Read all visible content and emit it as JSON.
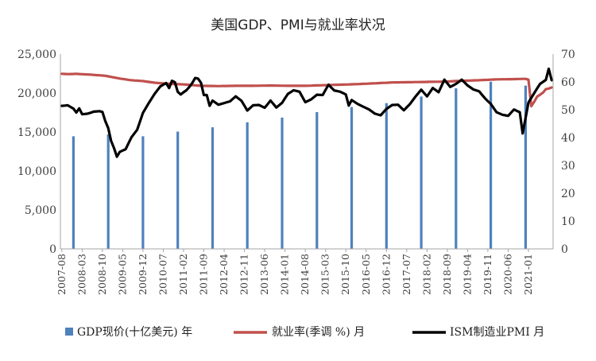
{
  "chart_data": {
    "type": "bar+line",
    "title": "美国GDP、PMI与就业率状况",
    "left_axis": {
      "min": 0,
      "max": 25000,
      "step": 5000,
      "tick_labels": [
        "0",
        "5,000",
        "10,000",
        "15,000",
        "20,000",
        "25,000"
      ]
    },
    "right_axis": {
      "min": 0,
      "max": 70,
      "step": 10,
      "tick_labels": [
        "0",
        "10",
        "20",
        "30",
        "40",
        "50",
        "60",
        "70"
      ]
    },
    "x_tick_labels": [
      "2007-08",
      "2008-03",
      "2008-10",
      "2009-05",
      "2009-12",
      "2010-07",
      "2011-02",
      "2011-09",
      "2012-04",
      "2012-11",
      "2013-06",
      "2014-01",
      "2014-08",
      "2015-03",
      "2015-10",
      "2016-05",
      "2016-12",
      "2017-07",
      "2018-02",
      "2018-09",
      "2019-04",
      "2019-11",
      "2020-06",
      "2021-01"
    ],
    "start_month": "2007-08",
    "num_months": 170,
    "gdp": {
      "name": "GDP现价(十亿美元) 年",
      "color": "#4f81bd",
      "points": [
        {
          "month": "2007-12",
          "value": 14450
        },
        {
          "month": "2008-12",
          "value": 14700
        },
        {
          "month": "2009-12",
          "value": 14450
        },
        {
          "month": "2010-12",
          "value": 15050
        },
        {
          "month": "2011-12",
          "value": 15600
        },
        {
          "month": "2012-12",
          "value": 16250
        },
        {
          "month": "2013-12",
          "value": 16850
        },
        {
          "month": "2014-12",
          "value": 17550
        },
        {
          "month": "2015-12",
          "value": 18200
        },
        {
          "month": "2016-12",
          "value": 18700
        },
        {
          "month": "2017-12",
          "value": 19550
        },
        {
          "month": "2018-12",
          "value": 20600
        },
        {
          "month": "2019-12",
          "value": 21450
        },
        {
          "month": "2020-12",
          "value": 20950
        }
      ]
    },
    "employment": {
      "name": "就业率(季调 %) 月",
      "color": "#c0504d",
      "keypoints": [
        [
          0,
          62.9
        ],
        [
          2,
          62.8
        ],
        [
          5,
          62.9
        ],
        [
          10,
          62.6
        ],
        [
          15,
          62.2
        ],
        [
          20,
          61.2
        ],
        [
          24,
          60.6
        ],
        [
          28,
          60.3
        ],
        [
          32,
          59.7
        ],
        [
          36,
          59.4
        ],
        [
          42,
          59.1
        ],
        [
          48,
          58.6
        ],
        [
          54,
          58.5
        ],
        [
          60,
          58.6
        ],
        [
          66,
          58.6
        ],
        [
          72,
          58.7
        ],
        [
          78,
          58.6
        ],
        [
          84,
          58.6
        ],
        [
          90,
          58.8
        ],
        [
          96,
          59.0
        ],
        [
          102,
          59.2
        ],
        [
          108,
          59.5
        ],
        [
          114,
          59.8
        ],
        [
          120,
          59.9
        ],
        [
          126,
          60.0
        ],
        [
          132,
          60.1
        ],
        [
          138,
          60.4
        ],
        [
          144,
          60.6
        ],
        [
          150,
          60.9
        ],
        [
          156,
          61.0
        ],
        [
          160,
          61.1
        ],
        [
          161,
          60.8
        ],
        [
          162,
          51.3
        ],
        [
          163,
          52.9
        ],
        [
          164,
          54.7
        ],
        [
          165,
          55.4
        ],
        [
          166,
          56.1
        ],
        [
          167,
          57.4
        ],
        [
          168,
          57.6
        ],
        [
          169,
          58.0
        ]
      ]
    },
    "pmi": {
      "name": "ISM制造业PMI 月",
      "color": "#000000",
      "keypoints": [
        [
          0,
          51.4
        ],
        [
          2,
          51.6
        ],
        [
          4,
          50.4
        ],
        [
          5,
          49.0
        ],
        [
          6,
          50.5
        ],
        [
          7,
          48.4
        ],
        [
          9,
          48.6
        ],
        [
          11,
          49.3
        ],
        [
          13,
          49.5
        ],
        [
          14,
          49.2
        ],
        [
          15,
          45.9
        ],
        [
          16,
          43.4
        ],
        [
          17,
          38.8
        ],
        [
          18,
          36.2
        ],
        [
          19,
          33.1
        ],
        [
          20,
          34.9
        ],
        [
          22,
          35.8
        ],
        [
          24,
          40.1
        ],
        [
          26,
          42.8
        ],
        [
          28,
          48.9
        ],
        [
          30,
          52.4
        ],
        [
          32,
          55.7
        ],
        [
          34,
          58.4
        ],
        [
          36,
          59.6
        ],
        [
          37,
          57.8
        ],
        [
          38,
          60.4
        ],
        [
          39,
          59.9
        ],
        [
          40,
          56.4
        ],
        [
          41,
          55.5
        ],
        [
          42,
          56.3
        ],
        [
          43,
          57.0
        ],
        [
          44,
          58.2
        ],
        [
          45,
          59.6
        ],
        [
          46,
          61.4
        ],
        [
          47,
          61.2
        ],
        [
          48,
          59.7
        ],
        [
          49,
          55.3
        ],
        [
          50,
          55.3
        ],
        [
          51,
          51.4
        ],
        [
          52,
          53.3
        ],
        [
          54,
          51.8
        ],
        [
          56,
          52.4
        ],
        [
          58,
          53.0
        ],
        [
          60,
          54.8
        ],
        [
          62,
          53.2
        ],
        [
          64,
          49.7
        ],
        [
          66,
          51.6
        ],
        [
          68,
          51.7
        ],
        [
          70,
          50.7
        ],
        [
          72,
          53.3
        ],
        [
          74,
          50.8
        ],
        [
          76,
          52.5
        ],
        [
          78,
          55.7
        ],
        [
          80,
          57.0
        ],
        [
          82,
          56.5
        ],
        [
          84,
          52.7
        ],
        [
          86,
          53.7
        ],
        [
          88,
          55.4
        ],
        [
          90,
          55.3
        ],
        [
          92,
          59.0
        ],
        [
          94,
          56.9
        ],
        [
          96,
          56.5
        ],
        [
          98,
          55.5
        ],
        [
          99,
          51.5
        ],
        [
          100,
          53.5
        ],
        [
          102,
          52.1
        ],
        [
          104,
          51.1
        ],
        [
          106,
          50.1
        ],
        [
          108,
          48.6
        ],
        [
          110,
          48.0
        ],
        [
          112,
          50.3
        ],
        [
          114,
          51.7
        ],
        [
          116,
          51.8
        ],
        [
          118,
          49.8
        ],
        [
          120,
          51.9
        ],
        [
          122,
          54.7
        ],
        [
          124,
          57.2
        ],
        [
          126,
          54.8
        ],
        [
          128,
          57.8
        ],
        [
          130,
          56.3
        ],
        [
          132,
          60.8
        ],
        [
          134,
          58.2
        ],
        [
          136,
          59.3
        ],
        [
          138,
          60.8
        ],
        [
          140,
          58.7
        ],
        [
          142,
          57.3
        ],
        [
          144,
          56.6
        ],
        [
          146,
          54.1
        ],
        [
          148,
          52.1
        ],
        [
          150,
          49.1
        ],
        [
          152,
          48.2
        ],
        [
          154,
          47.8
        ],
        [
          156,
          50.1
        ],
        [
          158,
          49.1
        ],
        [
          159,
          41.5
        ],
        [
          161,
          52.6
        ],
        [
          163,
          56.0
        ],
        [
          165,
          59.3
        ],
        [
          167,
          60.7
        ],
        [
          168,
          64.7
        ],
        [
          169,
          60.6
        ]
      ]
    }
  }
}
